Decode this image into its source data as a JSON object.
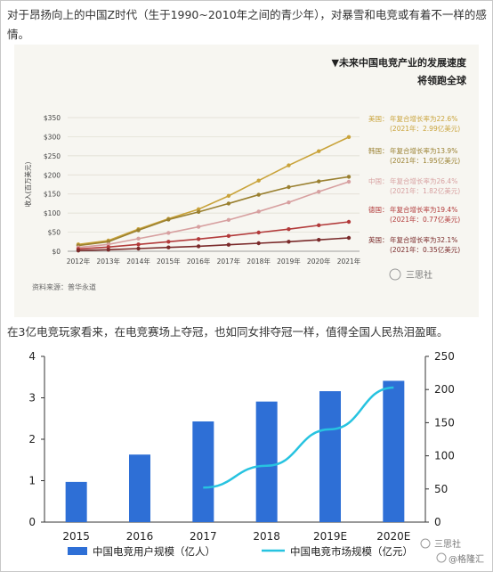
{
  "intro_text": "对于昂扬向上的中国Z时代（生于1990~2010年之间的青少年），对暴雪和电竞或有着不一样的感情。",
  "mid_text": "在3亿电竞玩家看来，在电竞赛场上夺冠，也如同女排夺冠一样，值得全国人民热泪盈眶。",
  "chart1": {
    "title_line1": "▼未来中国电竞产业的发展速度",
    "title_line2": "将领跑全球",
    "source": "资料来源：普华永道",
    "watermark": "三思社",
    "colors": {
      "us": "#c9a33a",
      "kr": "#9a8030",
      "cn": "#d7a0a0",
      "de": "#b23a3a",
      "uk": "#7a2a2a"
    }
  },
  "chart2": {
    "legend_bar": "中国电竞用户规模（亿人）",
    "legend_line": "中国电竞市场规模（亿元）",
    "watermark1": "三思社",
    "watermark2": "@格隆汇",
    "bar_color": "#2e6fd6",
    "line_color": "#27c3e0"
  },
  "chart_data": [
    {
      "type": "line",
      "x": [
        "2012年",
        "2013年",
        "2014年",
        "2015年",
        "2016年",
        "2017年",
        "2018年",
        "2019年",
        "2020年",
        "2021年"
      ],
      "ylabel": "收入(百万美元)",
      "ylim": [
        0,
        350
      ],
      "yticks": [
        "$0",
        "$50",
        "$100",
        "$150",
        "$200",
        "$250",
        "$300",
        "$350"
      ],
      "series": [
        {
          "name": "美国：",
          "growth": "年复合增长率为22.6%",
          "value_2021": "(2021年：2.99亿美元)",
          "values": [
            18,
            28,
            58,
            85,
            110,
            145,
            185,
            225,
            262,
            299
          ]
        },
        {
          "name": "韩国：",
          "growth": "年复合增长率为13.9%",
          "value_2021": "(2021年：1.95亿美元)",
          "values": [
            15,
            25,
            55,
            83,
            103,
            125,
            148,
            168,
            183,
            195
          ]
        },
        {
          "name": "中国：",
          "growth": "年复合增长率为26.4%",
          "value_2021": "(2021年：1.82亿美元)",
          "values": [
            10,
            18,
            33,
            48,
            64,
            82,
            104,
            128,
            156,
            182
          ]
        },
        {
          "name": "德国：",
          "growth": "年复合增长率为19.4%",
          "value_2021": "(2021年：0.77亿美元)",
          "values": [
            6,
            11,
            18,
            25,
            32,
            40,
            49,
            58,
            68,
            77
          ]
        },
        {
          "name": "英国：",
          "growth": "年复合增长率为32.1%",
          "value_2021": "(2021年：0.35亿美元)",
          "values": [
            2,
            4,
            7,
            10,
            13,
            17,
            21,
            25,
            30,
            35
          ]
        }
      ]
    },
    {
      "type": "bar",
      "categories": [
        "2015",
        "2016",
        "2017",
        "2018",
        "2019E",
        "2020E"
      ],
      "left_ylim": [
        0,
        4
      ],
      "left_yticks": [
        "0",
        "1",
        "2",
        "3",
        "4"
      ],
      "right_ylim": [
        0,
        250
      ],
      "right_yticks": [
        "0",
        "50",
        "100",
        "150",
        "200",
        "250"
      ],
      "series": [
        {
          "name": "中国电竞用户规模（亿人）",
          "axis": "left",
          "type": "bar",
          "values": [
            0.97,
            1.63,
            2.43,
            2.91,
            3.16,
            3.41
          ]
        },
        {
          "name": "中国电竞市场规模（亿元）",
          "axis": "right",
          "type": "line",
          "values": [
            null,
            null,
            52,
            85,
            140,
            203
          ]
        }
      ]
    }
  ]
}
